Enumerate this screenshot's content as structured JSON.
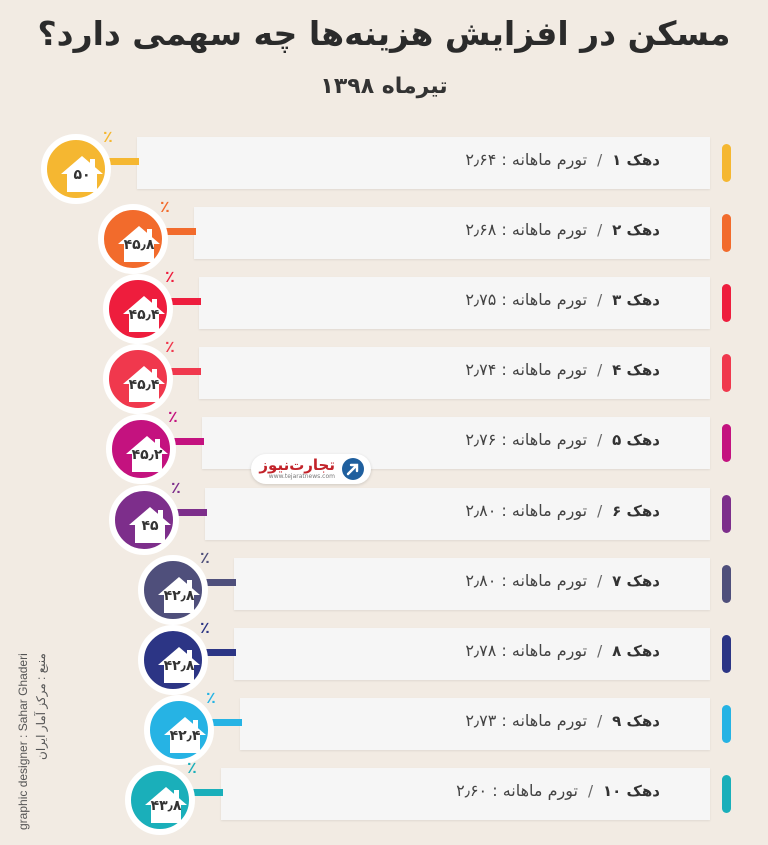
{
  "title": "مسکن در افزایش هزینه‌ها چه سهمی دارد؟",
  "subtitle": "تیرماه ۱۳۹۸",
  "logo": {
    "name": "تجارت‌نیوز",
    "url": "www.tejaratnews.com"
  },
  "credits": {
    "designer": "graphic designer : Sahar Ghaderi",
    "source": "منبع : مرکز آمار ایران"
  },
  "percent_sign": "٪",
  "separator": "/",
  "colors": [
    "#f5b731",
    "#f26b2c",
    "#ee1d3d",
    "#f0384d",
    "#c4127f",
    "#7d2e8b",
    "#4f4f7b",
    "#2c3585",
    "#26b3e4",
    "#1aafba"
  ],
  "chart_data": {
    "type": "bar",
    "title": "مسکن در افزایش هزینه‌ها چه سهمی دارد؟",
    "subtitle": "تیرماه ۱۳۹۸",
    "categories": [
      "دهک ۱",
      "دهک ۲",
      "دهک ۳",
      "دهک ۴",
      "دهک ۵",
      "دهک ۶",
      "دهک ۷",
      "دهک ۸",
      "دهک ۹",
      "دهک ۱۰"
    ],
    "inflation_labels": [
      "تورم ماهانه : ۲٫۶۴",
      "تورم ماهانه : ۲٫۶۸",
      "تورم ماهانه : ۲٫۷۵",
      "تورم ماهانه : ۲٫۷۴",
      "تورم ماهانه : ۲٫۷۶",
      "تورم ماهانه : ۲٫۸۰",
      "تورم ماهانه : ۲٫۸۰",
      "تورم ماهانه : ۲٫۷۸",
      "تورم ماهانه : ۲٫۷۳",
      "تورم ماهانه : ۲٫۶۰"
    ],
    "housing_share_labels": [
      "۵۰",
      "۴۵٫۸",
      "۴۵٫۴",
      "۴۵٫۴",
      "۴۵٫۲",
      "۴۵",
      "۴۲٫۸",
      "۴۲٫۸",
      "۴۲٫۴",
      "۴۳٫۸"
    ],
    "monthly_inflation": [
      2.64,
      2.68,
      2.75,
      2.74,
      2.76,
      2.8,
      2.8,
      2.78,
      2.73,
      2.6
    ],
    "housing_share_percent": [
      50,
      45.8,
      45.4,
      45.4,
      45.2,
      45,
      42.8,
      42.8,
      42.4,
      43.8
    ]
  }
}
